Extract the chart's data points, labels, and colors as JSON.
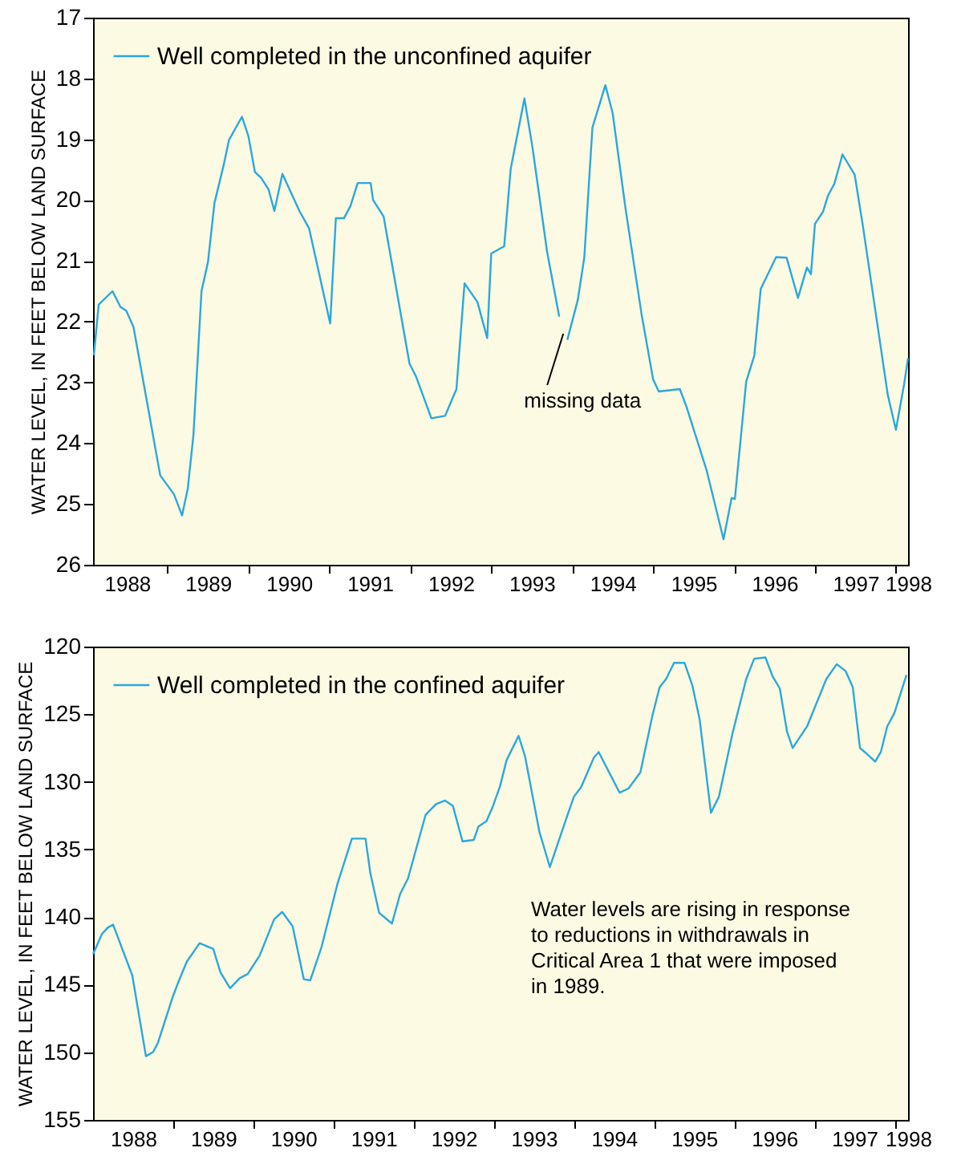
{
  "chart_data": [
    {
      "type": "line",
      "ylabel": "WATER LEVEL, IN FEET BELOW LAND SURFACE",
      "legend": "top left",
      "xlim": [
        1988.08,
        1998.15
      ],
      "ylim": [
        26,
        17
      ],
      "yticks": [
        17,
        18,
        19,
        20,
        21,
        22,
        23,
        24,
        25,
        26
      ],
      "xticks": [
        {
          "value": 1988.5,
          "label": "1988"
        },
        {
          "value": 1989,
          "label": null
        },
        {
          "value": 1989.5,
          "label": "1989"
        },
        {
          "value": 1990,
          "label": null
        },
        {
          "value": 1990.5,
          "label": "1990"
        },
        {
          "value": 1991,
          "label": null
        },
        {
          "value": 1991.5,
          "label": "1991"
        },
        {
          "value": 1992,
          "label": null
        },
        {
          "value": 1992.5,
          "label": "1992"
        },
        {
          "value": 1993,
          "label": null
        },
        {
          "value": 1993.5,
          "label": "1993"
        },
        {
          "value": 1994,
          "label": null
        },
        {
          "value": 1994.5,
          "label": "1994"
        },
        {
          "value": 1995,
          "label": null
        },
        {
          "value": 1995.5,
          "label": "1995"
        },
        {
          "value": 1996,
          "label": null
        },
        {
          "value": 1996.5,
          "label": "1996"
        },
        {
          "value": 1997,
          "label": null
        },
        {
          "value": 1997.5,
          "label": "1997"
        },
        {
          "value": 1998,
          "label": null
        },
        {
          "value": 1998.15,
          "label": "1998"
        }
      ],
      "x": [
        1988.09,
        1988.15,
        1988.32,
        1988.42,
        1988.49,
        1988.58,
        1988.91,
        1989.08,
        1989.18,
        1989.25,
        1989.32,
        1989.42,
        1989.5,
        1989.58,
        1989.7,
        1989.76,
        1989.92,
        1990.0,
        1990.08,
        1990.16,
        1990.25,
        1990.32,
        1990.42,
        1990.63,
        1990.75,
        1991.01,
        1991.08,
        1991.18,
        1991.26,
        1991.35,
        1991.51,
        1991.54,
        1991.67,
        1991.99,
        1992.07,
        1992.26,
        1992.43,
        1992.57,
        1992.67,
        1992.83,
        1992.95,
        1993.0,
        1993.08,
        1993.16,
        1993.24,
        1993.41,
        1993.51,
        1993.69,
        1993.84,
        1993.89,
        1993.94,
        1994.07,
        1994.15,
        1994.25,
        1994.41,
        1994.5,
        1994.66,
        1994.86,
        1995.0,
        1995.07,
        1995.33,
        1995.41,
        1995.66,
        1995.87,
        1995.97,
        1996.01,
        1996.15,
        1996.25,
        1996.33,
        1996.52,
        1996.65,
        1996.79,
        1996.9,
        1996.95,
        1997.0,
        1997.1,
        1997.16,
        1997.24,
        1997.34,
        1997.49,
        1997.59,
        1997.9,
        1998.0,
        1998.1,
        1998.15
      ],
      "series": [
        {
          "name": "Well completed in the unconfined aquifer",
          "color": "#29a8df",
          "values": [
            22.55,
            21.72,
            21.5,
            21.76,
            21.82,
            22.09,
            24.53,
            24.84,
            25.19,
            24.75,
            23.87,
            21.5,
            21.02,
            20.05,
            19.39,
            19.01,
            18.63,
            18.95,
            19.54,
            19.64,
            19.83,
            20.18,
            19.57,
            20.18,
            20.47,
            22.03,
            20.3,
            20.3,
            20.1,
            19.72,
            19.72,
            20.0,
            20.27,
            22.69,
            22.9,
            23.59,
            23.55,
            23.11,
            21.37,
            21.68,
            22.27,
            20.88,
            20.82,
            20.76,
            19.49,
            18.33,
            19.14,
            20.85,
            21.92,
            null,
            22.3,
            21.64,
            20.94,
            18.81,
            18.11,
            18.57,
            20.15,
            21.9,
            22.95,
            23.15,
            23.11,
            23.39,
            24.44,
            25.58,
            24.9,
            24.92,
            22.99,
            22.56,
            21.46,
            20.94,
            20.95,
            21.61,
            21.11,
            21.22,
            20.39,
            20.19,
            19.93,
            19.73,
            19.25,
            19.58,
            20.41,
            23.21,
            23.78,
            23.04,
            22.6
          ]
        }
      ],
      "annotations": [
        {
          "text": "missing data",
          "x": 1993.89,
          "y": 22.2
        }
      ]
    },
    {
      "type": "line",
      "ylabel": "WATER LEVEL, IN FEET BELOW LAND SURFACE",
      "legend": "top left",
      "xlim": [
        1988.0,
        1998.17
      ],
      "ylim": [
        155,
        120
      ],
      "yticks": [
        120,
        125,
        130,
        135,
        140,
        145,
        150,
        155
      ],
      "xticks": [
        {
          "value": 1988.5,
          "label": "1988"
        },
        {
          "value": 1989,
          "label": null
        },
        {
          "value": 1989.5,
          "label": "1989"
        },
        {
          "value": 1990,
          "label": null
        },
        {
          "value": 1990.5,
          "label": "1990"
        },
        {
          "value": 1991,
          "label": null
        },
        {
          "value": 1991.5,
          "label": "1991"
        },
        {
          "value": 1992,
          "label": null
        },
        {
          "value": 1992.5,
          "label": "1992"
        },
        {
          "value": 1993,
          "label": null
        },
        {
          "value": 1993.5,
          "label": "1993"
        },
        {
          "value": 1994,
          "label": null
        },
        {
          "value": 1994.5,
          "label": "1994"
        },
        {
          "value": 1995,
          "label": null
        },
        {
          "value": 1995.5,
          "label": "1995"
        },
        {
          "value": 1996,
          "label": null
        },
        {
          "value": 1996.5,
          "label": "1996"
        },
        {
          "value": 1997,
          "label": null
        },
        {
          "value": 1997.5,
          "label": "1997"
        },
        {
          "value": 1998,
          "label": null
        },
        {
          "value": 1998.17,
          "label": "1998"
        }
      ],
      "x": [
        1988.0,
        1988.11,
        1988.18,
        1988.25,
        1988.49,
        1988.66,
        1988.75,
        1988.81,
        1988.99,
        1989.07,
        1989.17,
        1989.33,
        1989.5,
        1989.59,
        1989.71,
        1989.83,
        1989.93,
        1990.08,
        1990.26,
        1990.36,
        1990.49,
        1990.63,
        1990.71,
        1990.85,
        1991.05,
        1991.23,
        1991.4,
        1991.46,
        1991.57,
        1991.73,
        1991.83,
        1991.93,
        1992.15,
        1992.28,
        1992.39,
        1992.49,
        1992.61,
        1992.75,
        1992.81,
        1992.91,
        1992.99,
        1993.08,
        1993.16,
        1993.31,
        1993.39,
        1993.57,
        1993.7,
        1993.86,
        1994.0,
        1994.09,
        1994.25,
        1994.31,
        1994.57,
        1994.68,
        1994.83,
        1994.98,
        1995.07,
        1995.15,
        1995.25,
        1995.38,
        1995.48,
        1995.57,
        1995.71,
        1995.81,
        1995.98,
        1996.15,
        1996.25,
        1996.39,
        1996.48,
        1996.57,
        1996.66,
        1996.73,
        1996.91,
        1997.15,
        1997.28,
        1997.39,
        1997.48,
        1997.57,
        1997.63,
        1997.76,
        1997.83,
        1997.91,
        1998.0,
        1998.15
      ],
      "series": [
        {
          "name": "Well completed in the confined aquifer",
          "color": "#29a8df",
          "values": [
            142.75,
            141.26,
            140.8,
            140.56,
            144.32,
            150.29,
            149.97,
            149.3,
            145.97,
            144.72,
            143.3,
            141.93,
            142.36,
            144.09,
            145.26,
            144.52,
            144.21,
            142.83,
            140.16,
            139.62,
            140.67,
            144.6,
            144.68,
            142.24,
            137.54,
            134.2,
            134.2,
            136.75,
            139.69,
            140.48,
            138.32,
            137.14,
            132.44,
            131.65,
            131.38,
            131.77,
            134.4,
            134.3,
            133.3,
            132.9,
            131.8,
            130.3,
            128.4,
            126.6,
            128.1,
            133.7,
            136.3,
            133.5,
            131.1,
            130.4,
            128.2,
            127.8,
            130.8,
            130.5,
            129.3,
            125.1,
            123.0,
            122.4,
            121.2,
            121.2,
            122.9,
            125.4,
            132.3,
            131.1,
            126.4,
            122.4,
            120.9,
            120.8,
            122.2,
            123.1,
            126.3,
            127.5,
            125.9,
            122.4,
            121.3,
            121.8,
            123.0,
            127.5,
            127.8,
            128.5,
            127.8,
            125.9,
            124.9,
            122.1
          ]
        }
      ],
      "annotations": [
        "Water levels are rising in response\nto reductions in withdrawals in\nCritical Area 1 that were imposed\nin 1989."
      ]
    }
  ]
}
